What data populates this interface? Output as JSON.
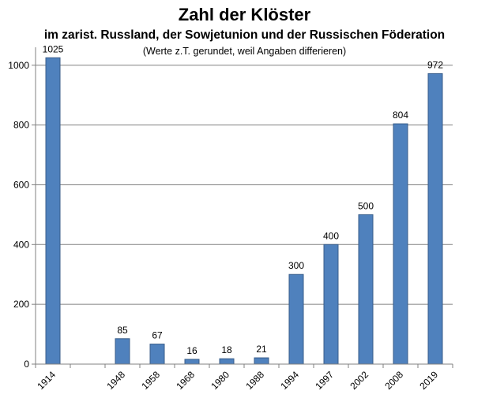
{
  "chart_data": {
    "type": "bar",
    "title": "Zahl der Klöster",
    "subtitle": "im zarist. Russland, der Sowjetunion und der Russischen Föderation",
    "note": "(Werte z.T. gerundet, weil Angaben differieren)",
    "categories": [
      "1914",
      "",
      "1948",
      "1958",
      "1968",
      "1980",
      "1988",
      "1994",
      "1997",
      "2002",
      "2008",
      "2019"
    ],
    "values": [
      1025,
      null,
      85,
      67,
      16,
      18,
      21,
      300,
      400,
      500,
      804,
      972
    ],
    "data_labels": [
      "1025",
      "",
      "85",
      "67",
      "16",
      "18",
      "21",
      "300",
      "400",
      "500",
      "804",
      "972"
    ],
    "y_ticks": [
      0,
      200,
      400,
      600,
      800,
      1000
    ],
    "ylim": [
      0,
      1060
    ],
    "grid": true,
    "legend": "none",
    "bar_color": "#4F81BD",
    "bar_edge_color": "#385D8A",
    "grid_color": "#808080"
  }
}
